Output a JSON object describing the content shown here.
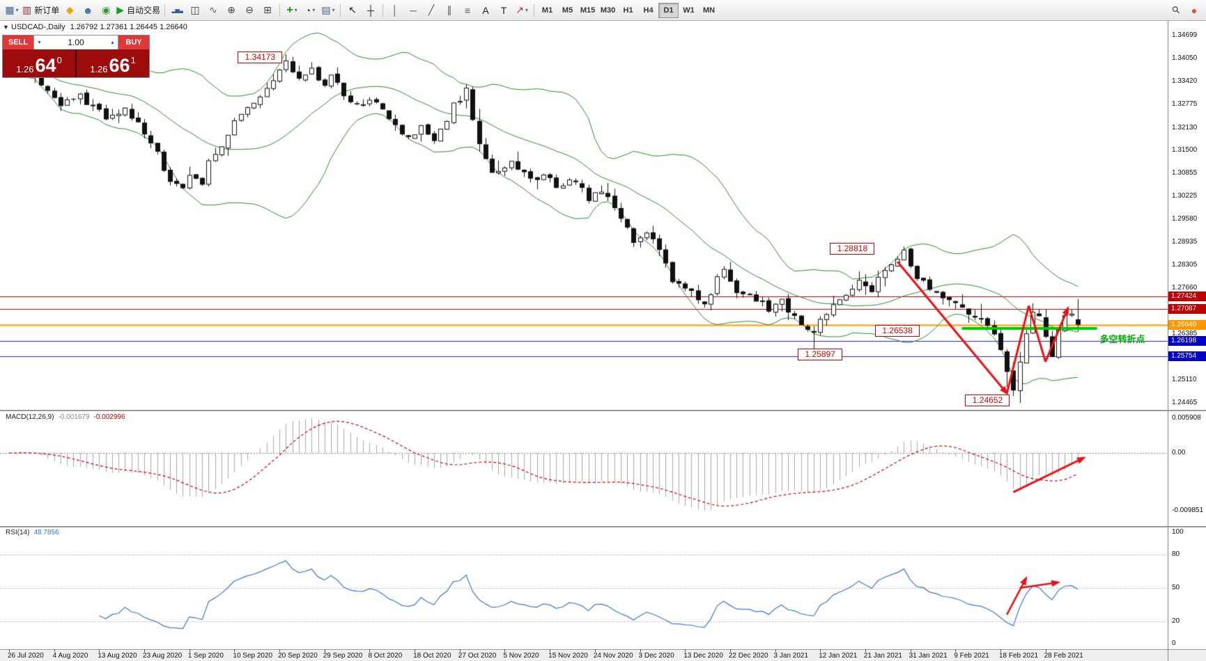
{
  "toolbar": {
    "items": [
      {
        "name": "new-chart-icon",
        "glyph": "▦",
        "color": "#3a5f8a",
        "dropdown": true
      },
      {
        "name": "new-order-button",
        "glyph": "▥",
        "color": "#b03030",
        "label": "新订单"
      },
      {
        "name": "metaeditor-icon",
        "glyph": "◆",
        "color": "#e8a400"
      },
      {
        "name": "accounts-icon",
        "glyph": "☻",
        "color": "#3a6ea5"
      },
      {
        "name": "community-icon",
        "glyph": "◉",
        "color": "#2a9a2a"
      },
      {
        "name": "autotrading-button",
        "glyph": "▶",
        "color": "#18a018",
        "label": "自动交易"
      },
      {
        "sep": true
      },
      {
        "name": "bar-chart-icon",
        "glyph": "▂▅▃",
        "color": "#3a5f8a",
        "small": true
      },
      {
        "name": "candlestick-chart-icon",
        "glyph": "◫",
        "color": "#333333"
      },
      {
        "name": "line-chart-icon",
        "glyph": "∿",
        "color": "#3a5f8a"
      },
      {
        "name": "zoom-in-icon",
        "glyph": "⊕",
        "color": "#444444"
      },
      {
        "name": "zoom-out-icon",
        "glyph": "⊖",
        "color": "#444444"
      },
      {
        "name": "tile-windows-icon",
        "glyph": "⊞",
        "color": "#444444"
      },
      {
        "sep": true
      },
      {
        "name": "indicators-icon",
        "glyph": "+",
        "color": "#0a9a0a",
        "bold": true,
        "dropdown": true
      },
      {
        "name": "periods-icon",
        "glyph": "◔",
        "color": "#444444",
        "dropdown": true
      },
      {
        "name": "templates-icon",
        "glyph": "▤",
        "color": "#3a5f8a",
        "dropdown": true
      },
      {
        "sep": true
      },
      {
        "name": "cursor-icon",
        "glyph": "↖",
        "color": "#222222"
      },
      {
        "name": "crosshair-icon",
        "glyph": "┼",
        "color": "#222222"
      },
      {
        "sep": true
      },
      {
        "name": "vertical-line-icon",
        "glyph": "│",
        "color": "#555555"
      },
      {
        "name": "horizontal-line-icon",
        "glyph": "─",
        "color": "#555555"
      },
      {
        "name": "trendline-icon",
        "glyph": "╱",
        "color": "#555555"
      },
      {
        "name": "channel-icon",
        "glyph": "∥",
        "color": "#555555"
      },
      {
        "name": "fibonacci-icon",
        "glyph": "≡",
        "color": "#555555"
      },
      {
        "name": "text-icon",
        "glyph": "A",
        "color": "#222222"
      },
      {
        "name": "text-label-icon",
        "glyph": "T",
        "color": "#222222"
      },
      {
        "name": "arrows-tool-icon",
        "glyph": "↗",
        "color": "#b03030",
        "dropdown": true
      },
      {
        "sep": true
      }
    ],
    "timeframes": [
      "M1",
      "M5",
      "M15",
      "M30",
      "H1",
      "H4",
      "D1",
      "W1",
      "MN"
    ],
    "active_timeframe": "D1",
    "right_items": [
      {
        "name": "search-icon",
        "glyph": "⚲",
        "color": "#444444",
        "rotate": true
      },
      {
        "name": "connection-status-icon",
        "glyph": "●",
        "color": "#e8540f"
      }
    ]
  },
  "chart": {
    "symbol_period": "USDCAD-,Daily",
    "ohlc": "1.26792 1.27361 1.26445 1.26640"
  },
  "trade_panel": {
    "toggle_glyph": "▼",
    "sell_label": "SELL",
    "buy_label": "BUY",
    "volume": "1.00",
    "spinner_down": "▼",
    "spinner_up": "▲",
    "sell_price_head": "1.26",
    "sell_price_big": "64",
    "sell_price_sup": "0",
    "buy_price_head": "1.26",
    "buy_price_big": "66",
    "buy_price_sup": "1"
  },
  "chart_data": {
    "type": "candlestick",
    "symbol": "USDCAD-",
    "timeframe": "Daily",
    "current_bar": {
      "open": 1.26792,
      "high": 1.27361,
      "low": 1.26445,
      "close": 1.2664
    },
    "price_axis": {
      "max": 1.34699,
      "min": 1.24465,
      "labels": [
        "1.34699",
        "1.34050",
        "1.33420",
        "1.32775",
        "1.32130",
        "1.31500",
        "1.30855",
        "1.30225",
        "1.29580",
        "1.28935",
        "1.28305",
        "1.27660",
        "1.27015",
        "1.26385",
        "1.25740",
        "1.25110",
        "1.24465"
      ]
    },
    "date_axis": [
      "26 Jul 2020",
      "4 Aug 2020",
      "13 Aug 2020",
      "23 Aug 2020",
      "1 Sep 2020",
      "10 Sep 2020",
      "20 Sep 2020",
      "29 Sep 2020",
      "8 Oct 2020",
      "18 Oct 2020",
      "27 Oct 2020",
      "5 Nov 2020",
      "15 Nov 2020",
      "24 Nov 2020",
      "3 Dec 2020",
      "13 Dec 2020",
      "22 Dec 2020",
      "3 Jan 2021",
      "12 Jan 2021",
      "21 Jan 2021",
      "31 Jan 2021",
      "9 Feb 2021",
      "18 Feb 2021",
      "28 Feb 2021"
    ],
    "candles_per_label": 7,
    "candles": {
      "count": 167,
      "anchors": [
        [
          0,
          1.3368
        ],
        [
          2,
          1.339
        ],
        [
          5,
          1.3335
        ],
        [
          8,
          1.3282
        ],
        [
          11,
          1.33
        ],
        [
          15,
          1.3242
        ],
        [
          18,
          1.3268
        ],
        [
          22,
          1.3175
        ],
        [
          25,
          1.3062
        ],
        [
          27,
          1.3035
        ],
        [
          28,
          1.308
        ],
        [
          30,
          1.3055
        ],
        [
          31,
          1.311
        ],
        [
          34,
          1.3195
        ],
        [
          36,
          1.3255
        ],
        [
          39,
          1.3305
        ],
        [
          41,
          1.334
        ],
        [
          43,
          1.3398
        ],
        [
          45,
          1.3352
        ],
        [
          47,
          1.3378
        ],
        [
          49,
          1.3332
        ],
        [
          50,
          1.3355
        ],
        [
          52,
          1.3308
        ],
        [
          54,
          1.3272
        ],
        [
          57,
          1.3288
        ],
        [
          60,
          1.3222
        ],
        [
          62,
          1.3185
        ],
        [
          64,
          1.321
        ],
        [
          66,
          1.318
        ],
        [
          69,
          1.3272
        ],
        [
          71,
          1.3315
        ],
        [
          73,
          1.316
        ],
        [
          75,
          1.3082
        ],
        [
          78,
          1.3118
        ],
        [
          81,
          1.3062
        ],
        [
          83,
          1.3088
        ],
        [
          85,
          1.3042
        ],
        [
          88,
          1.3068
        ],
        [
          90,
          1.3012
        ],
        [
          92,
          1.304
        ],
        [
          95,
          1.2962
        ],
        [
          97,
          1.2902
        ],
        [
          99,
          1.2928
        ],
        [
          101,
          1.287
        ],
        [
          103,
          1.2778
        ],
        [
          106,
          1.2752
        ],
        [
          108,
          1.2712
        ],
        [
          110,
          1.28
        ],
        [
          111,
          1.2812
        ],
        [
          113,
          1.2762
        ],
        [
          116,
          1.2738
        ],
        [
          118,
          1.2702
        ],
        [
          120,
          1.2728
        ],
        [
          122,
          1.2678
        ],
        [
          125,
          1.2642
        ],
        [
          127,
          1.27
        ],
        [
          129,
          1.2742
        ],
        [
          132,
          1.2778
        ],
        [
          134,
          1.2752
        ],
        [
          136,
          1.282
        ],
        [
          139,
          1.2868
        ],
        [
          141,
          1.2802
        ],
        [
          143,
          1.276
        ],
        [
          146,
          1.2722
        ],
        [
          148,
          1.2712
        ],
        [
          151,
          1.2682
        ],
        [
          153,
          1.2642
        ],
        [
          154,
          1.2602
        ],
        [
          155,
          1.2532
        ],
        [
          156,
          1.2487
        ],
        [
          157,
          1.2562
        ],
        [
          158,
          1.2645
        ],
        [
          159,
          1.2706
        ],
        [
          160,
          1.2692
        ],
        [
          161,
          1.2622
        ],
        [
          162,
          1.2578
        ],
        [
          163,
          1.2642
        ],
        [
          164,
          1.2682
        ],
        [
          165,
          1.2702
        ],
        [
          166,
          1.2664
        ]
      ],
      "forced": {
        "43": {
          "h": 1.34173
        },
        "125": {
          "l": 1.25897
        },
        "139": {
          "h": 1.28818
        },
        "156": {
          "l": 1.24652
        },
        "166": {
          "o": 1.26792,
          "h": 1.27361,
          "l": 1.26445,
          "c": 1.2664
        }
      },
      "vol_zones": [
        [
          68,
          77
        ],
        [
          150,
          161
        ]
      ],
      "bull_fill": "#ffffff",
      "bear_fill": "#111111",
      "stroke": "#111111"
    },
    "bollinger": {
      "period": 20,
      "deviation": 2,
      "color": "#2e8b2e"
    },
    "hlines": [
      {
        "value": 1.27424,
        "color": "#aa0000",
        "width": 1,
        "tag": "1.27424",
        "tag_bg": "#c00000"
      },
      {
        "value": 1.27087,
        "color": "#aa0000",
        "width": 1,
        "tag": "1.27087",
        "tag_bg": "#c00000"
      },
      {
        "value": 1.2664,
        "color": "#ff9800",
        "width": 2,
        "tag": "1.26640",
        "tag_bg": "#ff9800"
      },
      {
        "value": 1.26198,
        "color": "#2020c0",
        "width": 1,
        "tag": "1.26198",
        "tag_bg": "#0000c8"
      },
      {
        "value": 1.25754,
        "color": "#2020c0",
        "width": 1,
        "tag": "1.25754",
        "tag_bg": "#0000c8"
      }
    ],
    "segment": {
      "value": 1.26538,
      "from_day": 148,
      "to_day": 169,
      "color": "#00cc00",
      "width": 4,
      "label": "多空转折点",
      "label_color": "#00b000"
    },
    "price_labels": [
      {
        "text": "1.34173",
        "day": 39,
        "price": 1.3408
      },
      {
        "text": "1.28818",
        "day": 131,
        "price": 1.2874
      },
      {
        "text": "1.26538",
        "day": 138,
        "price": 1.2646
      },
      {
        "text": "1.25897",
        "day": 126,
        "price": 1.258
      },
      {
        "text": "1.24652",
        "day": 152,
        "price": 1.2452
      }
    ],
    "trend_arrows": [
      {
        "from_day": 138,
        "from_price": 1.284,
        "to_day": 155,
        "to_price": 1.2473,
        "head": true
      },
      {
        "from_day": 155,
        "from_price": 1.2473,
        "to_day": 158.4,
        "to_price": 1.2717,
        "head": false
      },
      {
        "from_day": 158.4,
        "from_price": 1.2717,
        "to_day": 161,
        "to_price": 1.2561,
        "head": false
      },
      {
        "from_day": 161,
        "from_price": 1.2561,
        "to_day": 164.5,
        "to_price": 1.2711,
        "head": true
      }
    ],
    "macd": {
      "name": "MACD(12,26,9)",
      "value_main": "-0.001679",
      "value_signal": "-0.002996",
      "fast": 12,
      "slow": 26,
      "signal": 9,
      "axis_labels": [
        [
          "0.005908",
          0.005908
        ],
        [
          "0.00",
          0
        ],
        [
          "-0.009851",
          -0.009851
        ]
      ],
      "histogram_color": "#a8a8a8",
      "signal_color": "#cc0000",
      "arrow": {
        "from_day": 156,
        "from_val": -0.0067,
        "to_day": 167,
        "to_val": -0.0008
      }
    },
    "rsi": {
      "name": "RSI(14)",
      "value": "48.7856",
      "period": 14,
      "line_color": "#3c78c8",
      "levels": [
        100,
        80,
        50,
        20,
        0
      ],
      "level_lines": [
        80,
        50,
        20
      ],
      "arrows": [
        {
          "from_day": 155,
          "from_val": 26,
          "to_day": 158,
          "to_val": 59
        },
        {
          "from_day": 157,
          "from_val": 50,
          "to_day": 163,
          "to_val": 55
        }
      ]
    }
  }
}
